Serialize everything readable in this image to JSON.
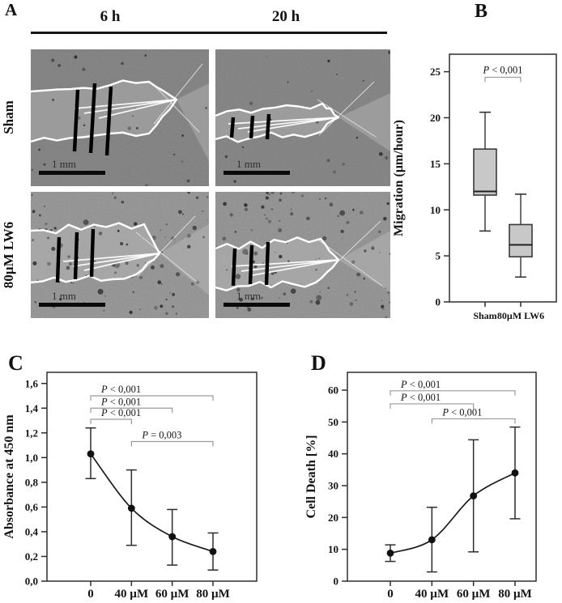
{
  "figure": {
    "panel_a": {
      "label": "A",
      "col_headers": [
        "6 h",
        "20 h"
      ],
      "row_labels": [
        "Sham",
        "80µM LW6"
      ],
      "scale_bar": "1 mm",
      "micrographs": [
        {
          "name": "sham-6h",
          "row": "Sham",
          "timepoint": "6 h"
        },
        {
          "name": "sham-20h",
          "row": "Sham",
          "timepoint": "20 h"
        },
        {
          "name": "lw6-6h",
          "row": "80µM LW6",
          "timepoint": "6 h"
        },
        {
          "name": "lw6-20h",
          "row": "80µM LW6",
          "timepoint": "20 h"
        }
      ]
    },
    "panel_b": {
      "label": "B"
    },
    "panel_c": {
      "label": "C"
    },
    "panel_d": {
      "label": "D"
    }
  },
  "chart_data": [
    {
      "panel": "B",
      "type": "boxplot",
      "ylabel": "Migration (µm/hour)",
      "ylim": [
        0,
        26.9
      ],
      "yticks": [
        0,
        5,
        10,
        15,
        20,
        25
      ],
      "ytick_labels": [
        "0",
        "5",
        "10",
        "15",
        "20",
        "25"
      ],
      "categories": [
        "Sham",
        "80µM LW6"
      ],
      "boxes": [
        {
          "whisker_low": 7.7,
          "q1": 11.6,
          "median": 12.0,
          "q3": 16.6,
          "whisker_high": 20.6
        },
        {
          "whisker_low": 2.7,
          "q1": 4.9,
          "median": 6.2,
          "q3": 8.4,
          "whisker_high": 11.7
        }
      ],
      "significance": [
        {
          "text": "P < 0,001",
          "from": 0,
          "to": 1,
          "y": 24.4
        }
      ],
      "box_fill": "#c8c8c8",
      "grid": false,
      "legend": null
    },
    {
      "panel": "C",
      "type": "line",
      "ylabel": "Absorbance at 450 nm",
      "xlabel": "",
      "categories": [
        "0",
        "40 µM",
        "60 µM",
        "80 µM"
      ],
      "ylim": [
        0,
        1.69
      ],
      "yticks": [
        0,
        0.2,
        0.4,
        0.6,
        0.8,
        1.0,
        1.2,
        1.4,
        1.6
      ],
      "ytick_labels": [
        "0,0",
        "0,2",
        "0,4",
        "0,6",
        "0,8",
        "1,0",
        "1,2",
        "1,4",
        "1,6"
      ],
      "values": [
        1.03,
        0.59,
        0.36,
        0.24
      ],
      "err_low": [
        0.83,
        0.29,
        0.13,
        0.09
      ],
      "err_high": [
        1.24,
        0.9,
        0.58,
        0.39
      ],
      "significance": [
        {
          "text": "P < 0,001",
          "from": 0,
          "to": 3,
          "y": 1.5
        },
        {
          "text": "P < 0,001",
          "from": 0,
          "to": 2,
          "y": 1.4
        },
        {
          "text": "P < 0,001",
          "from": 0,
          "to": 1,
          "y": 1.31
        },
        {
          "text": "P = 0,003",
          "from": 1,
          "to": 3,
          "y": 1.13
        }
      ],
      "grid": false,
      "legend": null
    },
    {
      "panel": "D",
      "type": "line",
      "ylabel": "Cell Death [%]",
      "xlabel": "",
      "categories": [
        "0",
        "40 µM",
        "60 µM",
        "80 µM"
      ],
      "ylim": [
        0,
        65.6
      ],
      "yticks": [
        0,
        10,
        20,
        30,
        40,
        50,
        60
      ],
      "ytick_labels": [
        "0",
        "10",
        "20",
        "30",
        "40",
        "50",
        "60"
      ],
      "values": [
        8.8,
        13.0,
        26.8,
        34.0
      ],
      "err_low": [
        6.2,
        2.9,
        9.2,
        19.6
      ],
      "err_high": [
        11.4,
        23.2,
        44.4,
        48.4
      ],
      "significance": [
        {
          "text": "P < 0,001",
          "from": 0,
          "to": 3,
          "y": 59.8
        },
        {
          "text": "P < 0,001",
          "from": 0,
          "to": 2,
          "y": 55.7
        },
        {
          "text": "P < 0,001",
          "from": 1,
          "to": 3,
          "y": 51.0
        }
      ],
      "grid": false,
      "legend": null
    }
  ],
  "colors": {
    "axis": "#2e2e2e",
    "data": "#151515",
    "box_fill": "#c8c8c8",
    "bracket": "#9a9a9a",
    "micro_cells_dark": "#8e8e8e",
    "micro_cells_light": "#a2a2a2",
    "micro_wound": "#9e9e9e",
    "outline_white": "#ffffff"
  }
}
